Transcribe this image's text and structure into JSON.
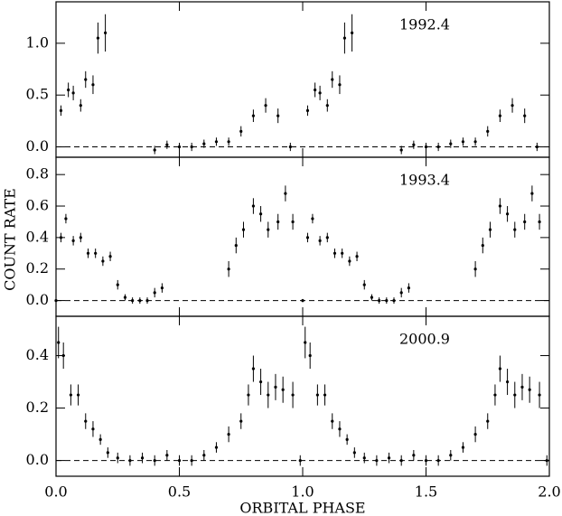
{
  "chart_data": [
    {
      "type": "scatter",
      "annotation": "1992.4",
      "color": "#000000",
      "xlim": [
        0,
        2
      ],
      "ylim": [
        -0.1,
        1.4
      ],
      "yticks": [
        {
          "value": 0,
          "label": "0.0"
        },
        {
          "value": 0.5,
          "label": "0.5"
        },
        {
          "value": 1,
          "label": "1.0"
        }
      ],
      "x": [
        0.02,
        0.05,
        0.07,
        0.1,
        0.12,
        0.15,
        0.17,
        0.2,
        0.4,
        0.45,
        0.5,
        0.55,
        0.6,
        0.65,
        0.7,
        0.75,
        0.8,
        0.85,
        0.9,
        0.95,
        1.02,
        1.05,
        1.07,
        1.1,
        1.12,
        1.15,
        1.17,
        1.2,
        1.4,
        1.45,
        1.5,
        1.55,
        1.6,
        1.65,
        1.7,
        1.75,
        1.8,
        1.85,
        1.9,
        1.95
      ],
      "values": [
        0.35,
        0.55,
        0.52,
        0.4,
        0.65,
        0.6,
        1.05,
        1.1,
        -0.03,
        0.02,
        0.0,
        0.0,
        0.03,
        0.05,
        0.05,
        0.15,
        0.3,
        0.4,
        0.3,
        0.0,
        0.35,
        0.55,
        0.52,
        0.4,
        0.65,
        0.6,
        1.05,
        1.1,
        -0.03,
        0.02,
        0.0,
        0.0,
        0.03,
        0.05,
        0.05,
        0.15,
        0.3,
        0.4,
        0.3,
        0.0
      ],
      "errors": [
        0.05,
        0.07,
        0.07,
        0.06,
        0.08,
        0.09,
        0.15,
        0.18,
        0.04,
        0.04,
        0.04,
        0.04,
        0.04,
        0.04,
        0.04,
        0.05,
        0.06,
        0.07,
        0.07,
        0.04,
        0.05,
        0.07,
        0.07,
        0.06,
        0.08,
        0.09,
        0.15,
        0.18,
        0.04,
        0.04,
        0.04,
        0.04,
        0.04,
        0.04,
        0.04,
        0.05,
        0.06,
        0.07,
        0.07,
        0.04
      ]
    },
    {
      "type": "scatter",
      "annotation": "1993.4",
      "ylabel": "COUNT RATE",
      "color": "#000000",
      "xlim": [
        0,
        2
      ],
      "ylim": [
        -0.1,
        0.91
      ],
      "yticks": [
        {
          "value": 0,
          "label": "0.0"
        },
        0.2,
        0.4,
        0.6,
        0.8
      ],
      "x": [
        0.0,
        0.02,
        0.04,
        0.07,
        0.1,
        0.13,
        0.16,
        0.19,
        0.22,
        0.25,
        0.28,
        0.31,
        0.34,
        0.37,
        0.4,
        0.43,
        0.7,
        0.73,
        0.76,
        0.8,
        0.83,
        0.86,
        0.9,
        0.93,
        0.96,
        1.0,
        1.02,
        1.04,
        1.07,
        1.1,
        1.13,
        1.16,
        1.19,
        1.22,
        1.25,
        1.28,
        1.31,
        1.34,
        1.37,
        1.4,
        1.43,
        1.7,
        1.73,
        1.76,
        1.8,
        1.83,
        1.86,
        1.9,
        1.93,
        1.96
      ],
      "values": [
        0.0,
        0.4,
        0.52,
        0.38,
        0.4,
        0.3,
        0.3,
        0.25,
        0.28,
        0.1,
        0.02,
        0.0,
        0.0,
        0.0,
        0.05,
        0.08,
        0.2,
        0.35,
        0.45,
        0.6,
        0.55,
        0.45,
        0.5,
        0.68,
        0.5,
        0.0,
        0.4,
        0.52,
        0.38,
        0.4,
        0.3,
        0.3,
        0.25,
        0.28,
        0.1,
        0.02,
        0.0,
        0.0,
        0.0,
        0.05,
        0.08,
        0.2,
        0.35,
        0.45,
        0.6,
        0.55,
        0.45,
        0.5,
        0.68,
        0.5
      ],
      "errors": [
        0.01,
        0.03,
        0.03,
        0.03,
        0.03,
        0.03,
        0.03,
        0.03,
        0.03,
        0.03,
        0.02,
        0.02,
        0.02,
        0.02,
        0.03,
        0.03,
        0.05,
        0.05,
        0.05,
        0.05,
        0.05,
        0.05,
        0.05,
        0.05,
        0.05,
        0.01,
        0.03,
        0.03,
        0.03,
        0.03,
        0.03,
        0.03,
        0.03,
        0.03,
        0.03,
        0.02,
        0.02,
        0.02,
        0.02,
        0.03,
        0.03,
        0.05,
        0.05,
        0.05,
        0.05,
        0.05,
        0.05,
        0.05,
        0.05,
        0.05
      ]
    },
    {
      "type": "scatter",
      "annotation": "2000.9",
      "xlabel": "ORBITAL PHASE",
      "color": "#000000",
      "xlim": [
        0,
        2
      ],
      "ylim": [
        -0.06,
        0.55
      ],
      "xticks": [
        {
          "value": 0,
          "label": "0.0"
        },
        0.5,
        {
          "value": 1,
          "label": "1.0"
        },
        1.5,
        {
          "value": 2,
          "label": "2.0"
        }
      ],
      "yticks": [
        {
          "value": 0,
          "label": "0.0"
        },
        0.2,
        0.4
      ],
      "x": [
        0.01,
        0.03,
        0.06,
        0.09,
        0.12,
        0.15,
        0.18,
        0.21,
        0.25,
        0.3,
        0.35,
        0.4,
        0.45,
        0.5,
        0.55,
        0.6,
        0.65,
        0.7,
        0.75,
        0.78,
        0.8,
        0.83,
        0.86,
        0.89,
        0.92,
        0.96,
        0.99,
        1.01,
        1.03,
        1.06,
        1.09,
        1.12,
        1.15,
        1.18,
        1.21,
        1.25,
        1.3,
        1.35,
        1.4,
        1.45,
        1.5,
        1.55,
        1.6,
        1.65,
        1.7,
        1.75,
        1.78,
        1.8,
        1.83,
        1.86,
        1.89,
        1.92,
        1.96,
        1.99
      ],
      "values": [
        0.45,
        0.4,
        0.25,
        0.25,
        0.15,
        0.12,
        0.08,
        0.03,
        0.01,
        0.0,
        0.01,
        0.0,
        0.02,
        0.0,
        0.0,
        0.02,
        0.05,
        0.1,
        0.15,
        0.25,
        0.35,
        0.3,
        0.25,
        0.28,
        0.27,
        0.25,
        0.0,
        0.45,
        0.4,
        0.25,
        0.25,
        0.15,
        0.12,
        0.08,
        0.03,
        0.01,
        0.0,
        0.01,
        0.0,
        0.02,
        0.0,
        0.0,
        0.02,
        0.05,
        0.1,
        0.15,
        0.25,
        0.35,
        0.3,
        0.25,
        0.28,
        0.27,
        0.25,
        0.0
      ],
      "errors": [
        0.06,
        0.05,
        0.04,
        0.04,
        0.03,
        0.03,
        0.02,
        0.02,
        0.02,
        0.02,
        0.02,
        0.02,
        0.02,
        0.02,
        0.02,
        0.02,
        0.02,
        0.03,
        0.03,
        0.04,
        0.05,
        0.05,
        0.05,
        0.05,
        0.05,
        0.05,
        0.02,
        0.06,
        0.05,
        0.04,
        0.04,
        0.03,
        0.03,
        0.02,
        0.02,
        0.02,
        0.02,
        0.02,
        0.02,
        0.02,
        0.02,
        0.02,
        0.02,
        0.02,
        0.03,
        0.03,
        0.04,
        0.05,
        0.05,
        0.05,
        0.05,
        0.05,
        0.05,
        0.02
      ]
    }
  ]
}
